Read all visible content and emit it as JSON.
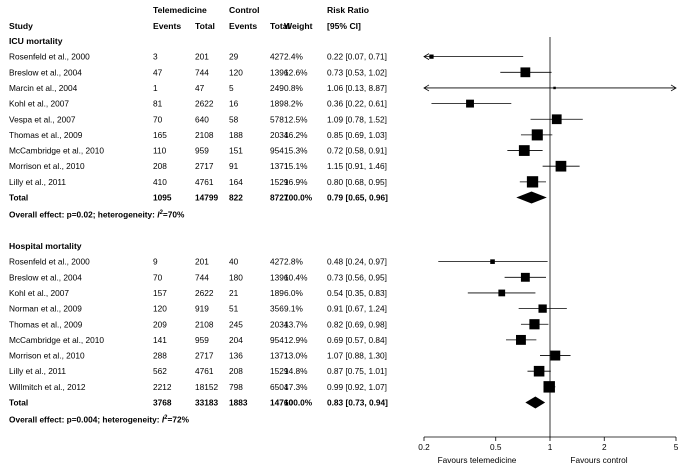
{
  "headers": {
    "study": "Study",
    "group1": "Telemedicine",
    "group2": "Control",
    "events1": "Events",
    "total1": "Total",
    "events2": "Events",
    "total2": "Total",
    "weight": "Weight",
    "rr_line1": "Risk Ratio",
    "rr_line2": "[95% CI]"
  },
  "chart_data": {
    "type": "forest",
    "x_scale": "log",
    "xlim": [
      0.2,
      5
    ],
    "xticks": [
      0.2,
      0.5,
      1,
      2,
      5
    ],
    "xtick_labels": [
      "0.2",
      "0.5",
      "1",
      "2",
      "5"
    ],
    "reference_line": 1,
    "xlabel_left": "Favours telemedicine",
    "xlabel_right": "Favours control",
    "sections": [
      {
        "title": "ICU mortality",
        "studies": [
          {
            "name": "Rosenfeld et al., 2000",
            "e1": "3",
            "t1": "201",
            "e2": "29",
            "t2": "427",
            "weight": "2.4%",
            "ci_text": "0.22 [0.07, 0.71]",
            "rr": 0.22,
            "lo": 0.07,
            "hi": 0.71,
            "w": 2.4
          },
          {
            "name": "Breslow et al., 2004",
            "e1": "47",
            "t1": "744",
            "e2": "120",
            "t2": "1396",
            "weight": "12.6%",
            "ci_text": "0.73 [0.53, 1.02]",
            "rr": 0.73,
            "lo": 0.53,
            "hi": 1.02,
            "w": 12.6
          },
          {
            "name": "Marcin et al., 2004",
            "e1": "1",
            "t1": "47",
            "e2": "5",
            "t2": "249",
            "weight": "0.8%",
            "ci_text": "1.06 [0.13, 8.87]",
            "rr": 1.06,
            "lo": 0.13,
            "hi": 8.87,
            "w": 0.8
          },
          {
            "name": "Kohl et al., 2007",
            "e1": "81",
            "t1": "2622",
            "e2": "16",
            "t2": "189",
            "weight": "8.2%",
            "ci_text": "0.36 [0.22, 0.61]",
            "rr": 0.36,
            "lo": 0.22,
            "hi": 0.61,
            "w": 8.2
          },
          {
            "name": "Vespa et al., 2007",
            "e1": "70",
            "t1": "640",
            "e2": "58",
            "t2": "578",
            "weight": "12.5%",
            "ci_text": "1.09 [0.78, 1.52]",
            "rr": 1.09,
            "lo": 0.78,
            "hi": 1.52,
            "w": 12.5
          },
          {
            "name": "Thomas et al., 2009",
            "e1": "165",
            "t1": "2108",
            "e2": "188",
            "t2": "2034",
            "weight": "16.2%",
            "ci_text": "0.85 [0.69, 1.03]",
            "rr": 0.85,
            "lo": 0.69,
            "hi": 1.03,
            "w": 16.2
          },
          {
            "name": "McCambridge et al., 2010",
            "e1": "110",
            "t1": "959",
            "e2": "151",
            "t2": "954",
            "weight": "15.3%",
            "ci_text": "0.72 [0.58, 0.91]",
            "rr": 0.72,
            "lo": 0.58,
            "hi": 0.91,
            "w": 15.3
          },
          {
            "name": "Morrison et al., 2010",
            "e1": "208",
            "t1": "2717",
            "e2": "91",
            "t2": "1371",
            "weight": "15.1%",
            "ci_text": "1.15 [0.91, 1.46]",
            "rr": 1.15,
            "lo": 0.91,
            "hi": 1.46,
            "w": 15.1
          },
          {
            "name": "Lilly et al., 2011",
            "e1": "410",
            "t1": "4761",
            "e2": "164",
            "t2": "1529",
            "weight": "16.9%",
            "ci_text": "0.80 [0.68, 0.95]",
            "rr": 0.8,
            "lo": 0.68,
            "hi": 0.95,
            "w": 16.9
          }
        ],
        "total": {
          "name": "Total",
          "e1": "1095",
          "t1": "14799",
          "e2": "822",
          "t2": "8727",
          "weight": "100.0%",
          "ci_text": "0.79 [0.65, 0.96]",
          "rr": 0.79,
          "lo": 0.65,
          "hi": 0.96
        },
        "overall_prefix": "Overall effect: p=0.02; heterogeneity: ",
        "overall_i": "I",
        "overall_sup": "2",
        "overall_suffix": "=70%"
      },
      {
        "title": "Hospital mortality",
        "studies": [
          {
            "name": "Rosenfeld et al., 2000",
            "e1": "9",
            "t1": "201",
            "e2": "40",
            "t2": "427",
            "weight": "2.8%",
            "ci_text": "0.48 [0.24, 0.97]",
            "rr": 0.48,
            "lo": 0.24,
            "hi": 0.97,
            "w": 2.8
          },
          {
            "name": "Breslow et al., 2004",
            "e1": "70",
            "t1": "744",
            "e2": "180",
            "t2": "1396",
            "weight": "10.4%",
            "ci_text": "0.73 [0.56, 0.95]",
            "rr": 0.73,
            "lo": 0.56,
            "hi": 0.95,
            "w": 10.4
          },
          {
            "name": "Kohl et al., 2007",
            "e1": "157",
            "t1": "2622",
            "e2": "21",
            "t2": "189",
            "weight": "6.0%",
            "ci_text": "0.54 [0.35, 0.83]",
            "rr": 0.54,
            "lo": 0.35,
            "hi": 0.83,
            "w": 6.0
          },
          {
            "name": "Norman et al., 2009",
            "e1": "120",
            "t1": "919",
            "e2": "51",
            "t2": "356",
            "weight": "9.1%",
            "ci_text": "0.91 [0.67, 1.24]",
            "rr": 0.91,
            "lo": 0.67,
            "hi": 1.24,
            "w": 9.1
          },
          {
            "name": "Thomas et al., 2009",
            "e1": "209",
            "t1": "2108",
            "e2": "245",
            "t2": "2034",
            "weight": "13.7%",
            "ci_text": "0.82 [0.69, 0.98]",
            "rr": 0.82,
            "lo": 0.69,
            "hi": 0.98,
            "w": 13.7
          },
          {
            "name": "McCambridge et al., 2010",
            "e1": "141",
            "t1": "959",
            "e2": "204",
            "t2": "954",
            "weight": "12.9%",
            "ci_text": "0.69 [0.57, 0.84]",
            "rr": 0.69,
            "lo": 0.57,
            "hi": 0.84,
            "w": 12.9
          },
          {
            "name": "Morrison et al., 2010",
            "e1": "288",
            "t1": "2717",
            "e2": "136",
            "t2": "1371",
            "weight": "13.0%",
            "ci_text": "1.07 [0.88, 1.30]",
            "rr": 1.07,
            "lo": 0.88,
            "hi": 1.3,
            "w": 13.0
          },
          {
            "name": "Lilly et al., 2011",
            "e1": "562",
            "t1": "4761",
            "e2": "208",
            "t2": "1529",
            "weight": "14.8%",
            "ci_text": "0.87 [0.75, 1.01]",
            "rr": 0.87,
            "lo": 0.75,
            "hi": 1.01,
            "w": 14.8
          },
          {
            "name": "Willmitch et al., 2012",
            "e1": "2212",
            "t1": "18152",
            "e2": "798",
            "t2": "6504",
            "weight": "17.3%",
            "ci_text": "0.99 [0.92, 1.07]",
            "rr": 0.99,
            "lo": 0.92,
            "hi": 1.07,
            "w": 17.3
          }
        ],
        "total": {
          "name": "Total",
          "e1": "3768",
          "t1": "33183",
          "e2": "1883",
          "t2": "14760",
          "weight": "100.0%",
          "ci_text": "0.83 [0.73, 0.94]",
          "rr": 0.83,
          "lo": 0.73,
          "hi": 0.94
        },
        "overall_prefix": "Overall effect: p=0.004; heterogeneity: ",
        "overall_i": "I",
        "overall_sup": "2",
        "overall_suffix": "=72%"
      }
    ]
  }
}
